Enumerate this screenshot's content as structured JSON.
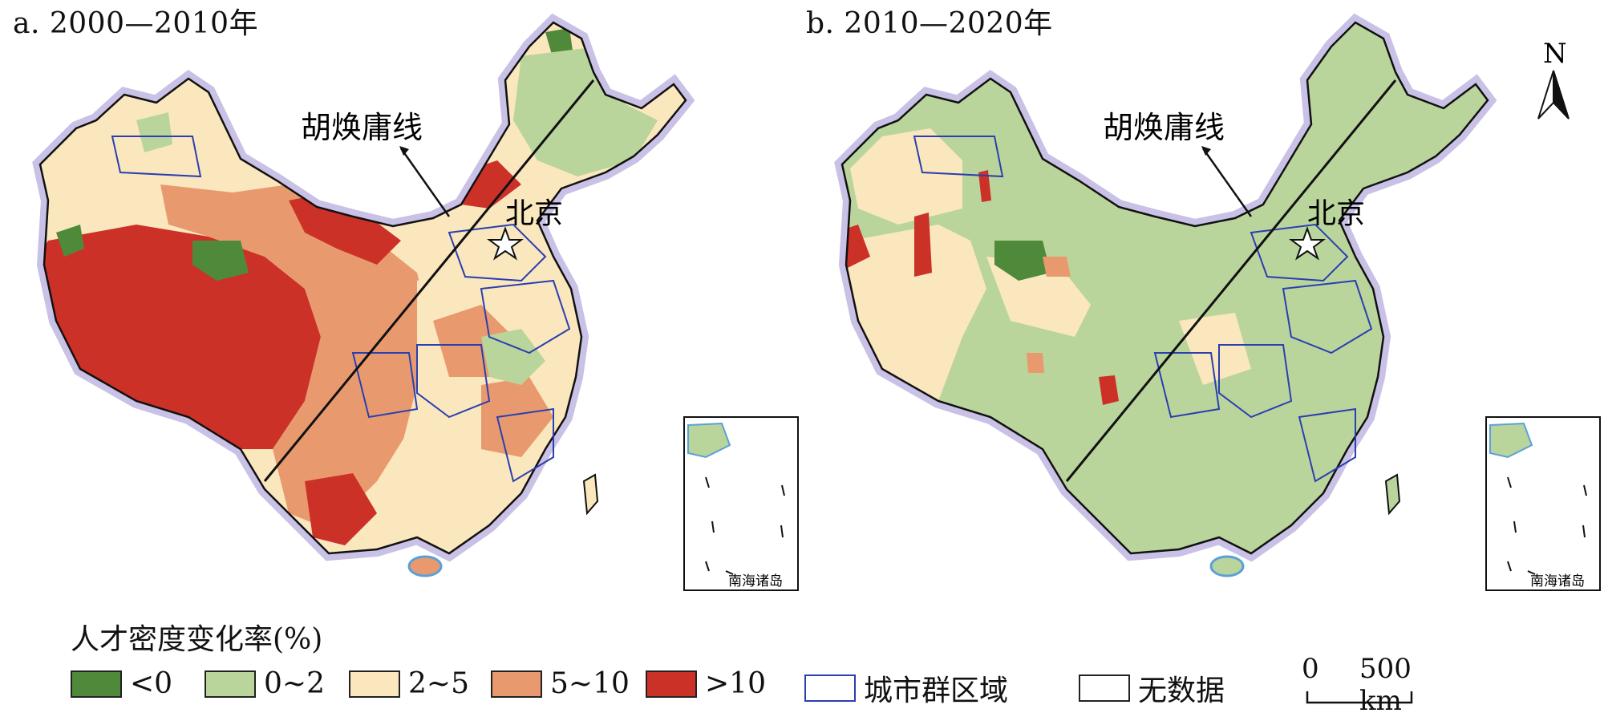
{
  "panels": [
    {
      "title": "a. 2000—2010年",
      "line_label": "胡焕庸线",
      "capital_label": "北京",
      "inset_label": "南海诸岛"
    },
    {
      "title": "b. 2010—2020年",
      "line_label": "胡焕庸线",
      "capital_label": "北京",
      "inset_label": "南海诸岛"
    }
  ],
  "north_label": "N",
  "legend": {
    "title": "人才密度变化率(%)",
    "classes": [
      {
        "label": "<0",
        "color": "#4f8a3a"
      },
      {
        "label": "0~2",
        "color": "#bad59c"
      },
      {
        "label": "2~5",
        "color": "#fae7bd"
      },
      {
        "label": "5~10",
        "color": "#e89a6e"
      },
      {
        "label": ">10",
        "color": "#cc3128"
      }
    ],
    "urban_region": {
      "label": "城市群区域",
      "color": "#2a3fb0"
    },
    "no_data": {
      "label": "无数据",
      "color": "#ffffff"
    }
  },
  "scale": {
    "zero": "0",
    "distance": "500 km"
  }
}
